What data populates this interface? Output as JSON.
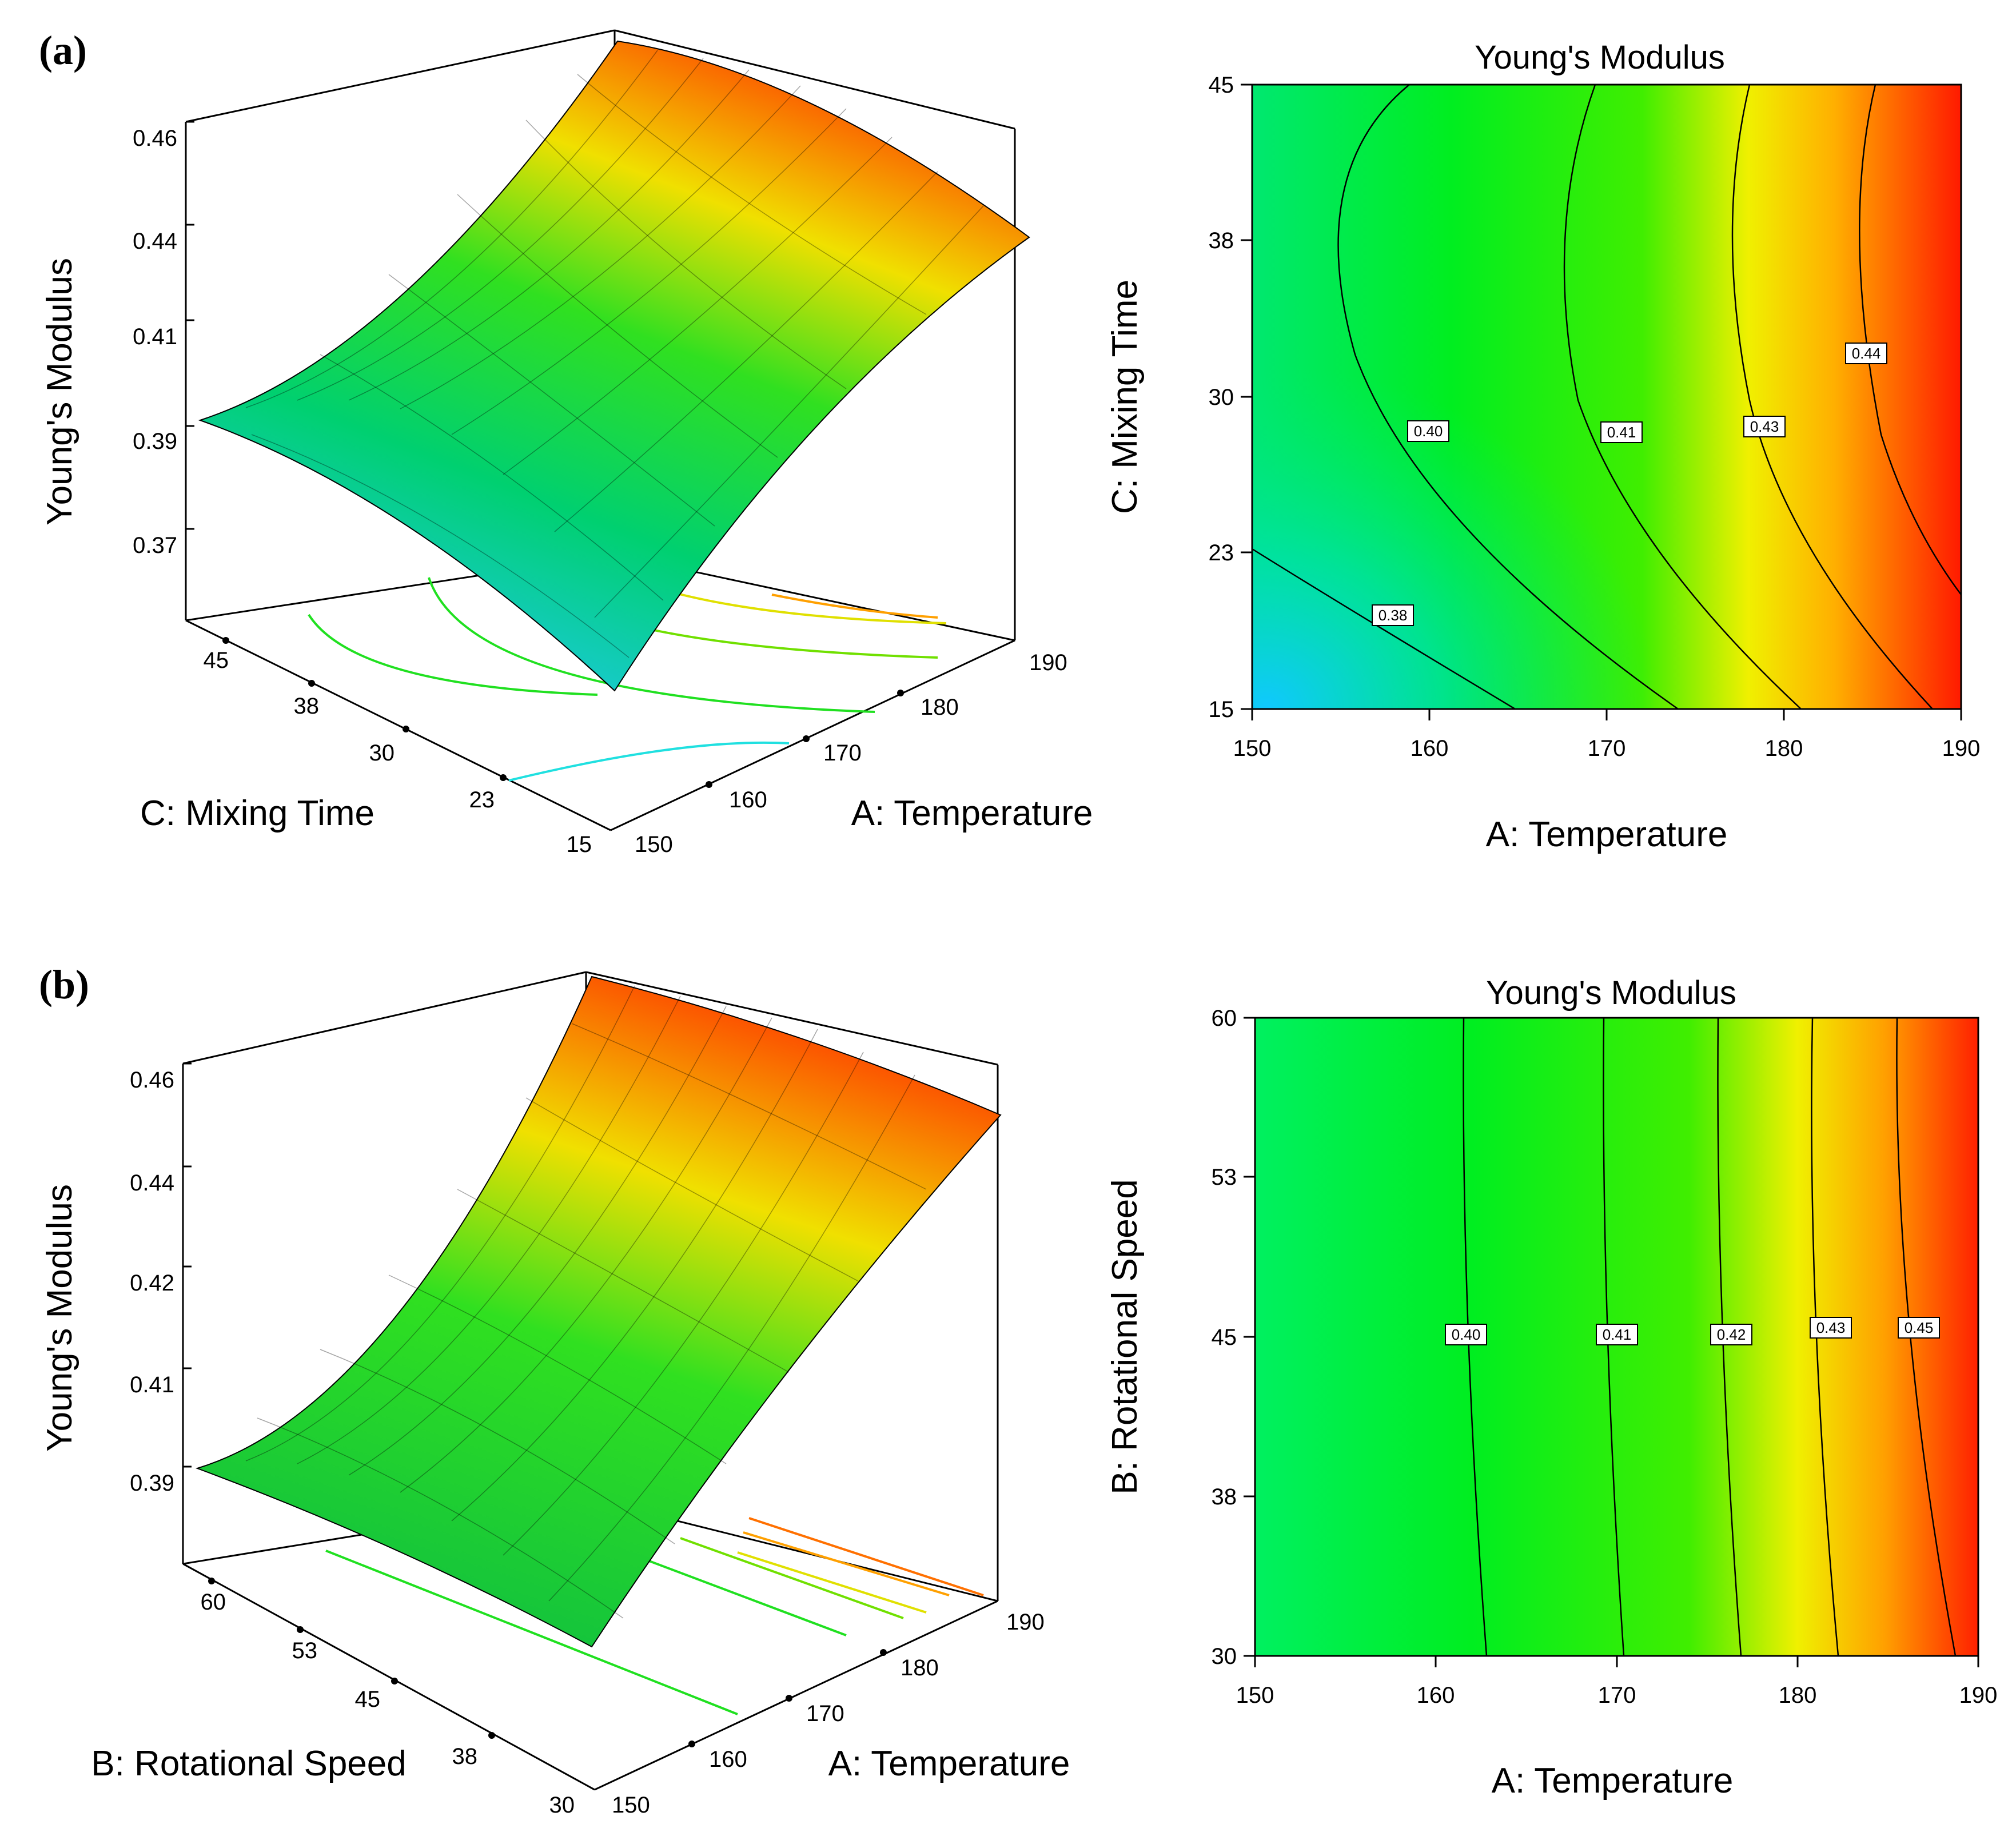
{
  "panels": [
    {
      "label": "(a)",
      "surface_view": {
        "type": "surface3d",
        "zlabel": "Young's Modulus",
        "xlabel": "A: Temperature",
        "ylabel": "C: Mixing Time",
        "x_ticks": [
          "150",
          "160",
          "170",
          "180",
          "190"
        ],
        "y_ticks": [
          "15",
          "23",
          "30",
          "38",
          "45"
        ],
        "z_ticks": [
          "0.37",
          "0.39",
          "0.41",
          "0.44",
          "0.46"
        ],
        "corner_values": {
          "T150_t15": 0.372,
          "T190_t15": 0.44,
          "T150_t45": 0.39,
          "T190_t45": 0.46
        }
      },
      "contour_view": {
        "type": "contour",
        "title": "Young's Modulus",
        "xlabel": "A: Temperature",
        "ylabel": "C: Mixing Time",
        "xlim": [
          150,
          190
        ],
        "ylim": [
          15,
          45
        ],
        "x_ticks": [
          "150",
          "160",
          "170",
          "180",
          "190"
        ],
        "y_ticks": [
          "15",
          "23",
          "30",
          "38",
          "45"
        ],
        "contour_labels": [
          "0.38",
          "0.40",
          "0.41",
          "0.43",
          "0.44"
        ]
      }
    },
    {
      "label": "(b)",
      "surface_view": {
        "type": "surface3d",
        "zlabel": "Young's Modulus",
        "xlabel": "A: Temperature",
        "ylabel": "B: Rotational Speed",
        "x_ticks": [
          "150",
          "160",
          "170",
          "180",
          "190"
        ],
        "y_ticks": [
          "30",
          "38",
          "45",
          "53",
          "60"
        ],
        "z_ticks": [
          "0.39",
          "0.41",
          "0.42",
          "0.44",
          "0.46"
        ],
        "corner_values": {
          "T150_s30": 0.39,
          "T190_s30": 0.455,
          "T150_s60": 0.391,
          "T190_s60": 0.462
        }
      },
      "contour_view": {
        "type": "contour",
        "title": "Young's Modulus",
        "xlabel": "A: Temperature",
        "ylabel": "B: Rotational Speed",
        "xlim": [
          150,
          190
        ],
        "ylim": [
          30,
          60
        ],
        "x_ticks": [
          "150",
          "160",
          "170",
          "180",
          "190"
        ],
        "y_ticks": [
          "30",
          "38",
          "45",
          "53",
          "60"
        ],
        "contour_labels": [
          "0.40",
          "0.41",
          "0.42",
          "0.43",
          "0.45"
        ]
      }
    }
  ],
  "chart_data": [
    {
      "type": "surface3d",
      "panel": "(a)",
      "x_name": "A: Temperature",
      "x": [
        150,
        160,
        170,
        180,
        190
      ],
      "y_name": "C: Mixing Time",
      "y": [
        15,
        23,
        30,
        38,
        45
      ],
      "z_name": "Young's Modulus",
      "z_grid_estimated": [
        [
          0.372,
          0.388,
          0.403,
          0.422,
          0.44
        ],
        [
          0.38,
          0.395,
          0.41,
          0.43,
          0.448
        ],
        [
          0.385,
          0.4,
          0.415,
          0.435,
          0.453
        ],
        [
          0.388,
          0.402,
          0.418,
          0.438,
          0.457
        ],
        [
          0.39,
          0.403,
          0.419,
          0.44,
          0.46
        ]
      ]
    },
    {
      "type": "contour",
      "panel": "(a)",
      "title": "Young's Modulus",
      "xlabel": "A: Temperature",
      "ylabel": "C: Mixing Time",
      "xlim": [
        150,
        190
      ],
      "ylim": [
        15,
        45
      ],
      "levels": [
        0.38,
        0.4,
        0.41,
        0.43,
        0.44
      ]
    },
    {
      "type": "surface3d",
      "panel": "(b)",
      "x_name": "A: Temperature",
      "x": [
        150,
        160,
        170,
        180,
        190
      ],
      "y_name": "B: Rotational Speed",
      "y": [
        30,
        38,
        45,
        53,
        60
      ],
      "z_name": "Young's Modulus",
      "z_grid_estimated": [
        [
          0.39,
          0.398,
          0.413,
          0.432,
          0.455
        ],
        [
          0.39,
          0.399,
          0.414,
          0.433,
          0.457
        ],
        [
          0.391,
          0.399,
          0.414,
          0.434,
          0.459
        ],
        [
          0.391,
          0.4,
          0.415,
          0.435,
          0.46
        ],
        [
          0.391,
          0.4,
          0.415,
          0.436,
          0.462
        ]
      ]
    },
    {
      "type": "contour",
      "panel": "(b)",
      "title": "Young's Modulus",
      "xlabel": "A: Temperature",
      "ylabel": "B: Rotational Speed",
      "xlim": [
        150,
        190
      ],
      "ylim": [
        30,
        60
      ],
      "levels": [
        0.4,
        0.41,
        0.42,
        0.43,
        0.45
      ]
    }
  ]
}
